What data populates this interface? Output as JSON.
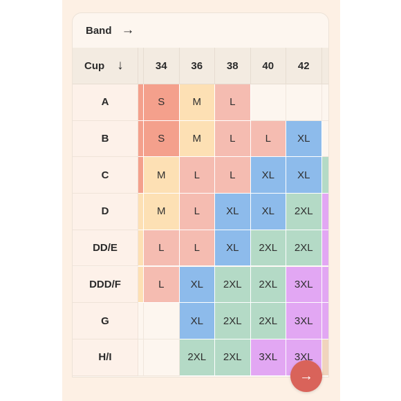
{
  "header": {
    "band_label": "Band",
    "band_arrow": "→"
  },
  "table": {
    "cup_label": "Cup",
    "cup_arrow": "↓",
    "bands": [
      "34",
      "36",
      "38",
      "40",
      "42"
    ],
    "rows": [
      {
        "cup": "A",
        "sizes": [
          "S",
          "M",
          "L",
          "",
          ""
        ]
      },
      {
        "cup": "B",
        "sizes": [
          "S",
          "M",
          "L",
          "L",
          "XL"
        ]
      },
      {
        "cup": "C",
        "sizes": [
          "M",
          "L",
          "L",
          "XL",
          "XL"
        ]
      },
      {
        "cup": "D",
        "sizes": [
          "M",
          "L",
          "XL",
          "XL",
          "2XL"
        ]
      },
      {
        "cup": "DD/E",
        "sizes": [
          "L",
          "L",
          "XL",
          "2XL",
          "2XL"
        ]
      },
      {
        "cup": "DDD/F",
        "sizes": [
          "L",
          "XL",
          "2XL",
          "2XL",
          "3XL"
        ]
      },
      {
        "cup": "G",
        "sizes": [
          "",
          "XL",
          "2XL",
          "2XL",
          "3XL"
        ]
      },
      {
        "cup": "H/I",
        "sizes": [
          "",
          "2XL",
          "2XL",
          "3XL",
          "3XL"
        ]
      }
    ],
    "size_colors": {
      "S": "#f4a08c",
      "M": "#fde0b4",
      "L": "#f5bcb1",
      "XL": "#8dbbeb",
      "2XL": "#b4dac6",
      "3XL": "#e2a7f3"
    }
  },
  "next_button": {
    "icon": "arrow-right-icon",
    "glyph": "→",
    "color": "#d9635a"
  }
}
